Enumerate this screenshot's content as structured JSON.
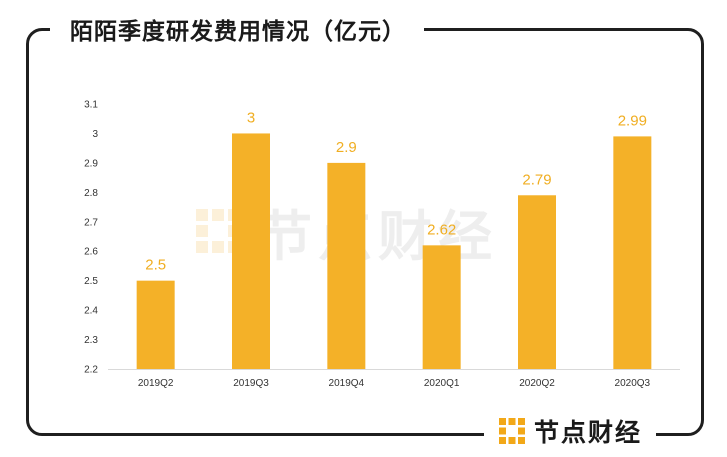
{
  "header": {
    "title": "陌陌季度研发费用情况（亿元）"
  },
  "brand": {
    "name": "节点财经",
    "watermark": "节点财经"
  },
  "colors": {
    "bar": "#f4b128",
    "label": "#f0ae22",
    "frame": "#1f1f1f",
    "axis": "#d9d9d9"
  },
  "chart_data": {
    "type": "bar",
    "title": "陌陌季度研发费用情况（亿元）",
    "categories": [
      "2019Q2",
      "2019Q3",
      "2019Q4",
      "2020Q1",
      "2020Q2",
      "2020Q3"
    ],
    "values": [
      2.5,
      3,
      2.9,
      2.62,
      2.79,
      2.99
    ],
    "value_labels": [
      "2.5",
      "3",
      "2.9",
      "2.62",
      "2.79",
      "2.99"
    ],
    "ylim": [
      2.2,
      3.1
    ],
    "yticks": [
      "2.2",
      "2.3",
      "2.4",
      "2.5",
      "2.6",
      "2.7",
      "2.8",
      "2.9",
      "3",
      "3.1"
    ],
    "xlabel": "",
    "ylabel": "",
    "grid": false,
    "legend": "none"
  }
}
